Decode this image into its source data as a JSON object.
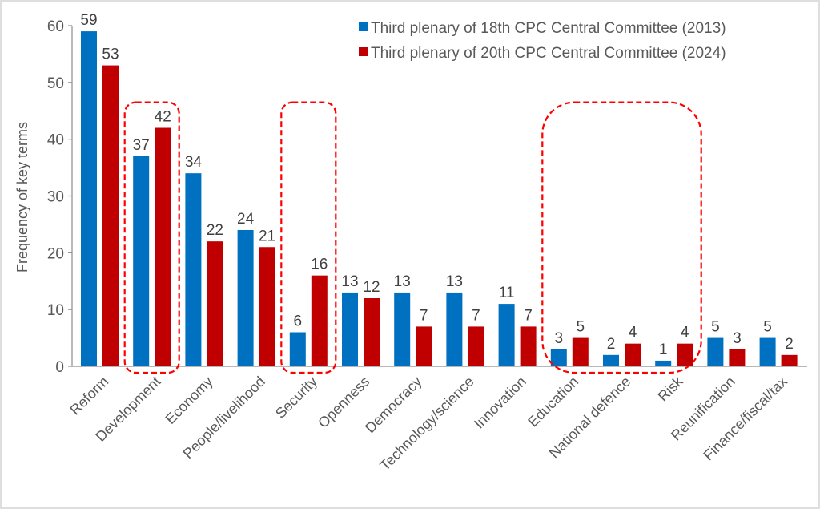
{
  "chart_data": {
    "type": "bar",
    "title": "",
    "xlabel": "",
    "ylabel": "Frequency of key terms",
    "ylim": [
      0,
      60
    ],
    "yticks": [
      0,
      10,
      20,
      30,
      40,
      50,
      60
    ],
    "grid": false,
    "legend_position": "top-right",
    "categories": [
      "Reform",
      "Development",
      "Economy",
      "People/livelihood",
      "Security",
      "Openness",
      "Democracy",
      "Technology/science",
      "Innovation",
      "Education",
      "National defence",
      "Risk",
      "Reunification",
      "Finance/fiscal/tax"
    ],
    "series": [
      {
        "name": "Third plenary of 18th CPC Central Committee (2013)",
        "color": "#0070c0",
        "values": [
          59,
          37,
          34,
          24,
          6,
          13,
          13,
          13,
          11,
          3,
          2,
          1,
          5,
          5
        ]
      },
      {
        "name": "Third plenary of 20th CPC Central Committee (2024)",
        "color": "#c00000",
        "values": [
          53,
          42,
          22,
          21,
          16,
          12,
          7,
          7,
          7,
          5,
          4,
          4,
          3,
          2
        ]
      }
    ],
    "annotations": [
      {
        "type": "dashed-rounded-box",
        "color": "#ff0000",
        "categories": [
          "Development"
        ],
        "top_value": 46.5
      },
      {
        "type": "dashed-rounded-box",
        "color": "#ff0000",
        "categories": [
          "Security"
        ],
        "top_value": 46.5
      },
      {
        "type": "dashed-rounded-box",
        "color": "#ff0000",
        "categories": [
          "Education",
          "National defence",
          "Risk"
        ],
        "top_value": 46.5
      }
    ]
  }
}
